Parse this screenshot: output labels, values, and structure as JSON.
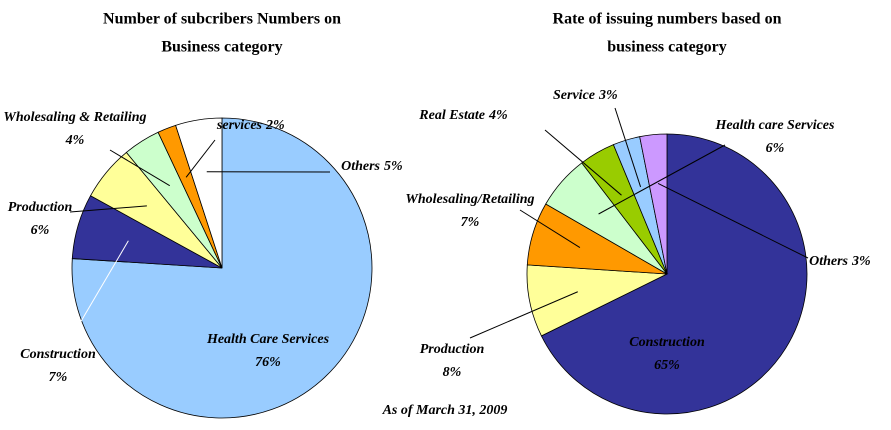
{
  "chart_data": [
    {
      "type": "pie",
      "title": [
        "Number of subcribers Numbers on",
        "Business category"
      ],
      "categories": [
        "Health Care Services",
        "Construction",
        "Production",
        "Wholesaling & Retailing",
        "services",
        "Others"
      ],
      "values": [
        76,
        7,
        6,
        4,
        2,
        5
      ],
      "value_labels": [
        "76%",
        "7%",
        "6%",
        "4%",
        "2%",
        "5%"
      ],
      "colors": [
        "#99ccff",
        "#333399",
        "#ffff99",
        "#ccffcc",
        "#ff9900",
        "#ffffff"
      ]
    },
    {
      "type": "pie",
      "title": [
        "Rate of issuing numbers based on",
        "business category"
      ],
      "categories": [
        "Construction",
        "Production",
        "Wholesaling/Retailing",
        "Health care Services",
        "Real Estate",
        "Service",
        "Others"
      ],
      "values": [
        65,
        8,
        7,
        6,
        4,
        3,
        3
      ],
      "value_labels": [
        "65%",
        "8%",
        "7%",
        "6%",
        "4%",
        "3%",
        "3%"
      ],
      "colors": [
        "#333399",
        "#ffff99",
        "#ff9900",
        "#ccffcc",
        "#99cc00",
        "#99ccff",
        "#cc99ff"
      ]
    }
  ],
  "footnote": "As of  March 31, 2009"
}
